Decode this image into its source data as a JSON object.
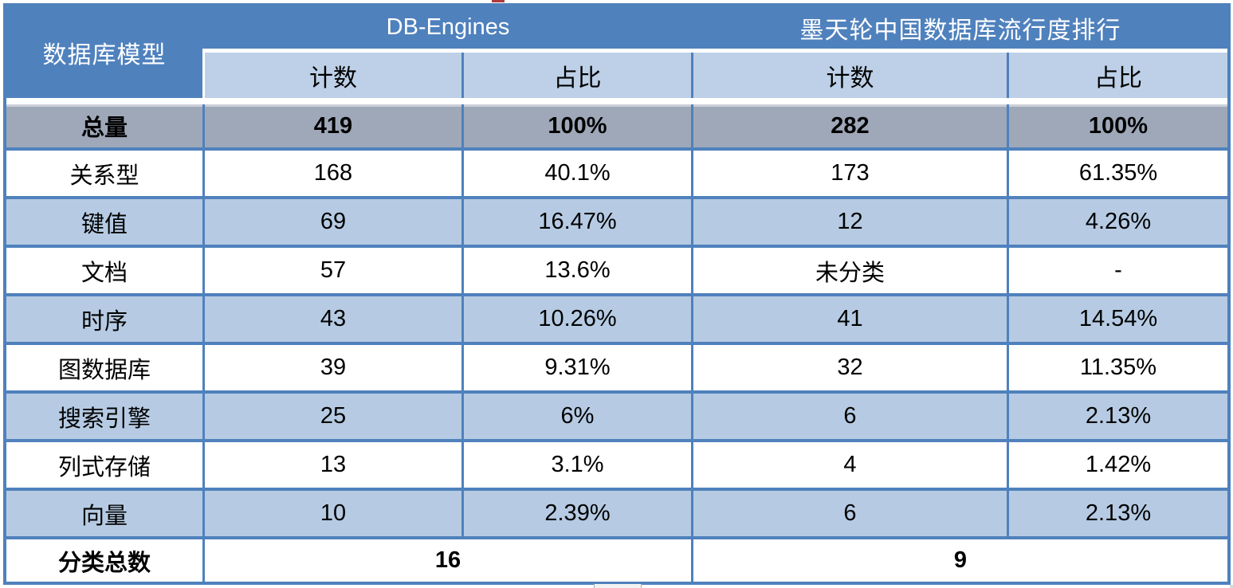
{
  "chart_data": {
    "type": "table",
    "corner_header": "数据库模型",
    "column_groups": [
      {
        "label": "DB-Engines",
        "sub_columns": [
          "计数",
          "占比"
        ]
      },
      {
        "label": "墨天轮中国数据库流行度排行",
        "sub_columns": [
          "计数",
          "占比"
        ]
      }
    ],
    "rows": [
      {
        "label": "总量",
        "values": [
          "419",
          "100%",
          "282",
          "100%"
        ],
        "style": "total"
      },
      {
        "label": "关系型",
        "values": [
          "168",
          "40.1%",
          "173",
          "61.35%"
        ],
        "style": "white"
      },
      {
        "label": "键值",
        "values": [
          "69",
          "16.47%",
          "12",
          "4.26%"
        ],
        "style": "band"
      },
      {
        "label": "文档",
        "values": [
          "57",
          "13.6%",
          "未分类",
          "-"
        ],
        "style": "white"
      },
      {
        "label": "时序",
        "values": [
          "43",
          "10.26%",
          "41",
          "14.54%"
        ],
        "style": "band"
      },
      {
        "label": "图数据库",
        "values": [
          "39",
          "9.31%",
          "32",
          "11.35%"
        ],
        "style": "white"
      },
      {
        "label": "搜索引擎",
        "values": [
          "25",
          "6%",
          "6",
          "2.13%"
        ],
        "style": "band"
      },
      {
        "label": "列式存储",
        "values": [
          "13",
          "3.1%",
          "4",
          "1.42%"
        ],
        "style": "white"
      },
      {
        "label": "向量",
        "values": [
          "10",
          "2.39%",
          "6",
          "2.13%"
        ],
        "style": "band"
      }
    ],
    "footer": {
      "label": "分类总数",
      "values": [
        "16",
        "9"
      ]
    }
  },
  "colors": {
    "header_blue": "#4f81bd",
    "subheader_blue": "#bdd0e7",
    "band_blue": "#b6cbe3",
    "total_gray": "#9ea8b8",
    "grid_blue": "#4f81bd",
    "text_dark": "#000000",
    "text_light": "#ffffff"
  }
}
